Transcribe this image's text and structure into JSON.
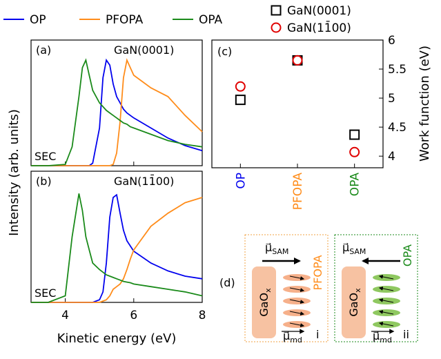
{
  "chart_data": [
    {
      "type": "line",
      "panel_label": "(a)",
      "annotation": "GaN(0001)",
      "note": "SEC",
      "ylabel": "Intensity (arb. units)",
      "x": [
        3,
        3.5,
        4,
        4.2,
        4.4,
        4.5,
        4.6,
        4.7,
        4.8,
        5,
        5.1,
        5.2,
        5.3,
        5.4,
        5.5,
        5.6,
        5.7,
        5.8,
        5.9,
        6,
        6.5,
        7,
        7.5,
        8
      ],
      "xlim": [
        3,
        8
      ],
      "xticks": [
        4,
        6,
        8
      ],
      "ylim": [
        0,
        1
      ],
      "series": [
        {
          "name": "OP",
          "color": "#0000ee",
          "values": [
            0,
            0,
            0,
            0,
            0,
            0,
            0,
            0,
            0.02,
            0.3,
            0.7,
            0.84,
            0.8,
            0.65,
            0.55,
            0.5,
            0.45,
            0.42,
            0.4,
            0.38,
            0.3,
            0.22,
            0.16,
            0.12
          ]
        },
        {
          "name": "PFOPA",
          "color": "#ff8c1a",
          "values": [
            0,
            0,
            0,
            0,
            0,
            0,
            0,
            0,
            0,
            0,
            0,
            0,
            0,
            0.01,
            0.1,
            0.35,
            0.7,
            0.84,
            0.78,
            0.72,
            0.62,
            0.55,
            0.4,
            0.27
          ]
        },
        {
          "name": "OPA",
          "color": "#1a8a1a",
          "values": [
            0,
            0,
            0.01,
            0.15,
            0.55,
            0.78,
            0.84,
            0.72,
            0.6,
            0.5,
            0.47,
            0.44,
            0.42,
            0.4,
            0.38,
            0.36,
            0.34,
            0.33,
            0.31,
            0.3,
            0.25,
            0.2,
            0.17,
            0.15
          ]
        }
      ]
    },
    {
      "type": "line",
      "panel_label": "(b)",
      "annotation": "GaN(11̄00)",
      "note": "SEC",
      "xlabel": "Kinetic energy (eV)",
      "x": [
        3,
        3.5,
        4,
        4.2,
        4.4,
        4.5,
        4.6,
        4.7,
        4.8,
        5,
        5.1,
        5.2,
        5.3,
        5.4,
        5.5,
        5.6,
        5.7,
        5.8,
        5.9,
        6,
        6.5,
        7,
        7.5,
        8
      ],
      "xlim": [
        3,
        8
      ],
      "xticks": [
        4,
        6,
        8
      ],
      "ylim": [
        0,
        1
      ],
      "series": [
        {
          "color": "#0000ee",
          "values": [
            0,
            0,
            0,
            0,
            0,
            0,
            0,
            0,
            0,
            0.02,
            0.08,
            0.3,
            0.65,
            0.8,
            0.82,
            0.68,
            0.55,
            0.47,
            0.43,
            0.39,
            0.3,
            0.24,
            0.2,
            0.18
          ]
        },
        {
          "color": "#ff8c1a",
          "values": [
            0,
            0,
            0,
            0,
            0,
            0,
            0,
            0,
            0,
            0,
            0.01,
            0.02,
            0.05,
            0.1,
            0.12,
            0.14,
            0.18,
            0.25,
            0.33,
            0.4,
            0.58,
            0.68,
            0.76,
            0.8
          ]
        },
        {
          "color": "#1a8a1a",
          "values": [
            0,
            0,
            0.05,
            0.5,
            0.83,
            0.7,
            0.5,
            0.4,
            0.3,
            0.25,
            0.23,
            0.21,
            0.2,
            0.19,
            0.18,
            0.17,
            0.16,
            0.155,
            0.15,
            0.14,
            0.12,
            0.1,
            0.08,
            0.05
          ]
        }
      ]
    },
    {
      "type": "scatter",
      "panel_label": "(c)",
      "ylabel": "Work function (eV)",
      "categories": [
        "OP",
        "PFOPA",
        "OPA"
      ],
      "category_colors": [
        "#0000ee",
        "#ff8c1a",
        "#1a8a1a"
      ],
      "ylim": [
        3.8,
        6.0
      ],
      "yticks": [
        4,
        4.5,
        5,
        5.5,
        6
      ],
      "series": [
        {
          "name": "GaN(0001)",
          "marker": "square",
          "color": "#000000",
          "values": [
            4.97,
            5.65,
            4.37
          ]
        },
        {
          "name": "GaN(11̄00)",
          "marker": "circle",
          "color": "#e00000",
          "values": [
            5.2,
            5.65,
            4.07
          ]
        }
      ]
    }
  ],
  "diagram": {
    "label": "(d)",
    "panels": [
      {
        "molecule": "PFOPA",
        "mu": "μ⃗",
        "sam_sub": "SAM",
        "oxide": "GaO",
        "ox_sub": "x",
        "md_sub": "md",
        "index": "i"
      },
      {
        "molecule": "OPA",
        "mu": "μ⃗",
        "sam_sub": "SAM",
        "oxide": "GaO",
        "ox_sub": "x",
        "md_sub": "md",
        "index": "ii"
      }
    ]
  }
}
